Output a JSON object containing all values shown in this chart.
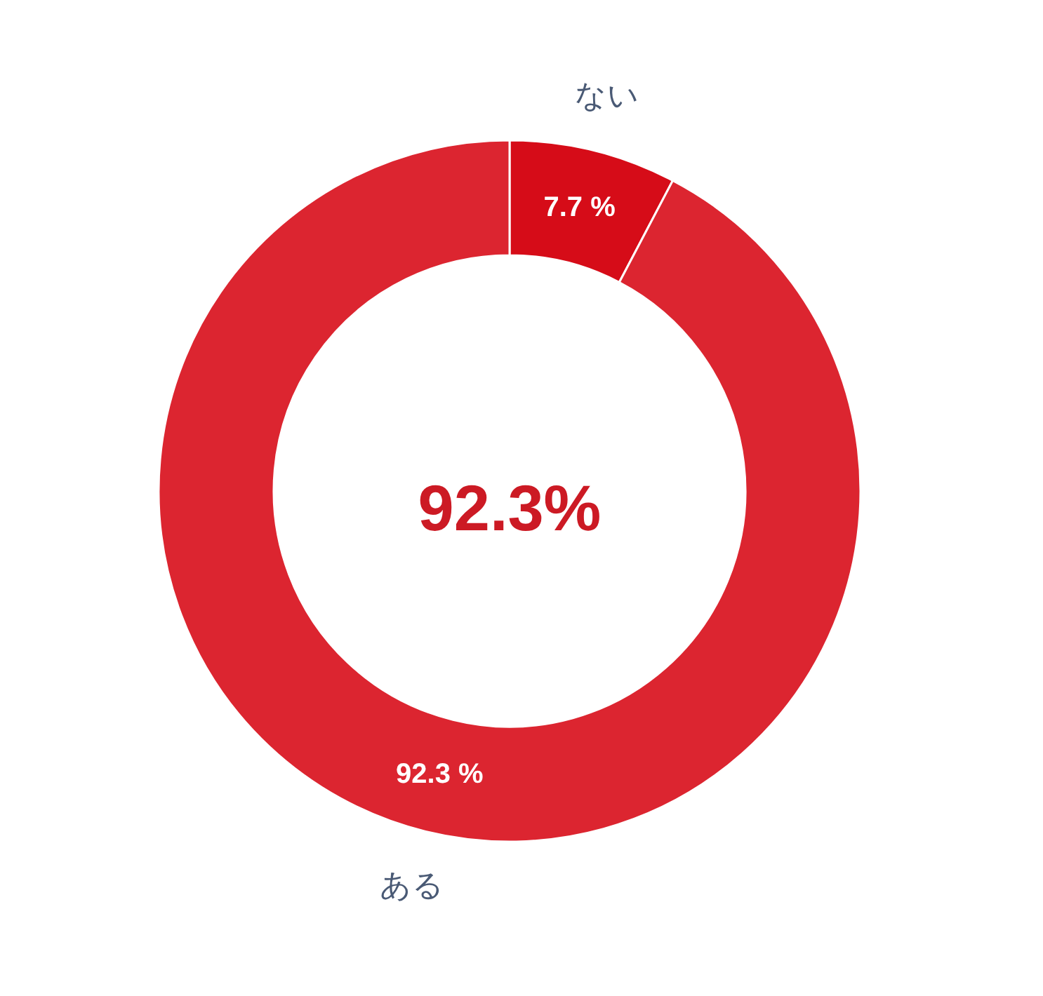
{
  "chart_data": {
    "type": "donut",
    "categories": [
      "ない",
      "ある"
    ],
    "values": [
      7.7,
      92.3
    ],
    "colors": [
      "#d60c18",
      "#dc2530"
    ],
    "value_labels": [
      "7.7 %",
      "92.3 %"
    ],
    "annotations": [
      "92.3%"
    ]
  }
}
